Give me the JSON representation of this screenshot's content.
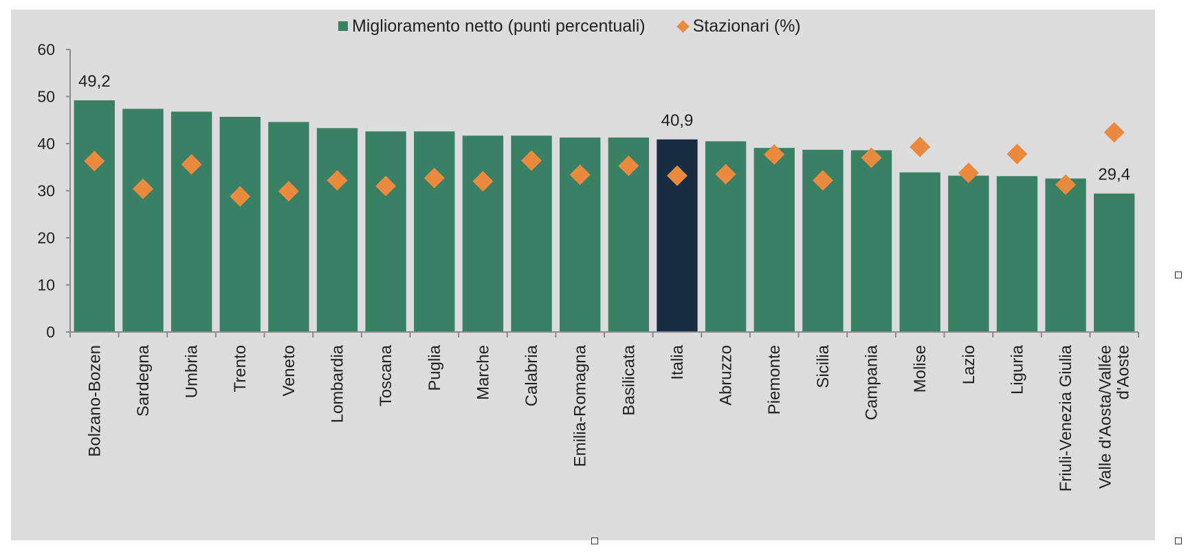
{
  "chart_data": {
    "type": "bar",
    "categories": [
      "Bolzano-Bozen",
      "Sardegna",
      "Umbria",
      "Trento",
      "Veneto",
      "Lombardia",
      "Toscana",
      "Puglia",
      "Marche",
      "Calabria",
      "Emilia-Romagna",
      "Basilicata",
      "Italia",
      "Abruzzo",
      "Piemonte",
      "Sicilia",
      "Campania",
      "Molise",
      "Lazio",
      "Liguria",
      "Friuli-Venezia Giulia",
      "Valle d'Aosta/Vallée d'Aoste"
    ],
    "category_lines": [
      [
        "Bolzano-Bozen"
      ],
      [
        "Sardegna"
      ],
      [
        "Umbria"
      ],
      [
        "Trento"
      ],
      [
        "Veneto"
      ],
      [
        "Lombardia"
      ],
      [
        "Toscana"
      ],
      [
        "Puglia"
      ],
      [
        "Marche"
      ],
      [
        "Calabria"
      ],
      [
        "Emilia-Romagna"
      ],
      [
        "Basilicata"
      ],
      [
        "Italia"
      ],
      [
        "Abruzzo"
      ],
      [
        "Piemonte"
      ],
      [
        "Sicilia"
      ],
      [
        "Campania"
      ],
      [
        "Molise"
      ],
      [
        "Lazio"
      ],
      [
        "Liguria"
      ],
      [
        "Friuli-Venezia Giulia"
      ],
      [
        "Valle d'Aosta/Vallée",
        "d'Aoste"
      ]
    ],
    "series": [
      {
        "name": "Miglioramento netto (punti percentuali)",
        "kind": "bar",
        "color": "#3a8065",
        "highlight_category": "Italia",
        "highlight_color": "#172d44",
        "values": [
          49.2,
          47.4,
          46.8,
          45.7,
          44.6,
          43.3,
          42.6,
          42.6,
          41.7,
          41.7,
          41.3,
          41.3,
          40.9,
          40.5,
          39.1,
          38.7,
          38.6,
          33.9,
          33.2,
          33.1,
          32.6,
          29.4
        ]
      },
      {
        "name": "Stazionari (%)",
        "kind": "marker",
        "marker": "diamond",
        "color": "#e98a3f",
        "values": [
          36.3,
          30.4,
          35.6,
          28.8,
          29.9,
          32.2,
          31.0,
          32.7,
          32.0,
          36.4,
          33.4,
          35.3,
          33.2,
          33.5,
          37.7,
          32.2,
          37.0,
          39.3,
          33.8,
          37.8,
          31.3,
          42.4
        ]
      }
    ],
    "data_labels": [
      {
        "category": "Bolzano-Bozen",
        "text": "49,2"
      },
      {
        "category": "Italia",
        "text": "40,9"
      },
      {
        "category": "Valle d'Aosta/Vallée d'Aoste",
        "text": "29,4"
      }
    ],
    "yticks": [
      "0",
      "10",
      "20",
      "30",
      "40",
      "50",
      "60"
    ],
    "ylim": [
      0,
      60
    ],
    "title": "",
    "xlabel": "",
    "ylabel": "",
    "grid": false,
    "legend_position": "top-center",
    "background": "#dcdcde"
  }
}
